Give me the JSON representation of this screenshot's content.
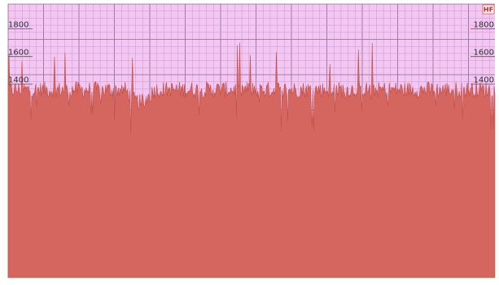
{
  "badge": {
    "text": "HF"
  },
  "colors": {
    "plot_background": "#f4c6f4",
    "grid_minor": "#c49ac4",
    "grid_major": "#8c6a8c",
    "area_fill": "#d4665f",
    "area_stroke": "#c24f48",
    "badge_border": "#d05a5a"
  },
  "chart_data": {
    "type": "area",
    "title": "",
    "xlabel": "",
    "ylabel": "",
    "ylim": [
      0,
      1980
    ],
    "yticks": [
      1400,
      1600,
      1800
    ],
    "ytick_labels": [
      "1400",
      "1600",
      "1800"
    ],
    "y_axes": [
      "left",
      "right"
    ],
    "grid": true,
    "series": [
      {
        "baseline": 1360,
        "spread": 60,
        "spike_max": 1710,
        "dip_min": 1060,
        "samples": 600
      }
    ]
  }
}
